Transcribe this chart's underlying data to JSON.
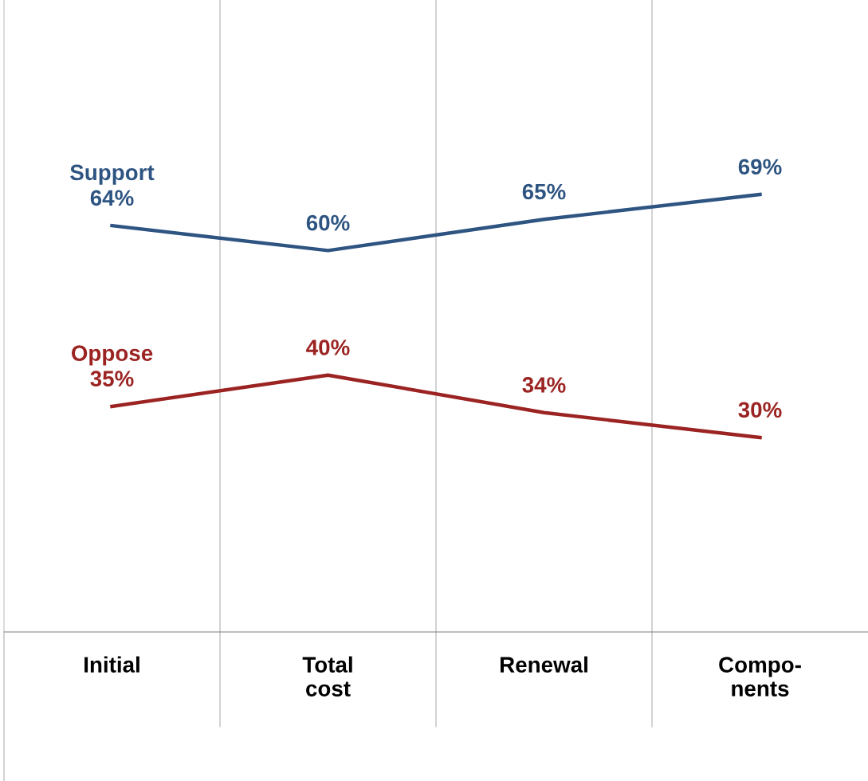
{
  "chart_data": {
    "type": "line",
    "categories": [
      "Initial",
      "Total\ncost",
      "Renewal",
      "Compo-\nnents"
    ],
    "series": [
      {
        "name": "Support",
        "color": "#2e5482",
        "values": [
          64,
          60,
          65,
          69
        ],
        "value_labels": [
          "64%",
          "60%",
          "65%",
          "69%"
        ]
      },
      {
        "name": "Oppose",
        "color": "#9b2423",
        "values": [
          35,
          40,
          34,
          30
        ],
        "value_labels": [
          "35%",
          "40%",
          "34%",
          "30%"
        ]
      }
    ],
    "grid": "x",
    "legend": false,
    "marker": "none",
    "line_style": "solid",
    "tick_labels": "x"
  }
}
